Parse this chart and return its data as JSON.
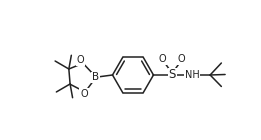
{
  "bg_color": "#ffffff",
  "line_color": "#222222",
  "line_width": 1.1,
  "font_size": 7.0,
  "fig_width": 2.61,
  "fig_height": 1.4,
  "dpi": 100,
  "xlim": [
    0.0,
    10.4
  ],
  "ylim": [
    0.5,
    5.5
  ]
}
